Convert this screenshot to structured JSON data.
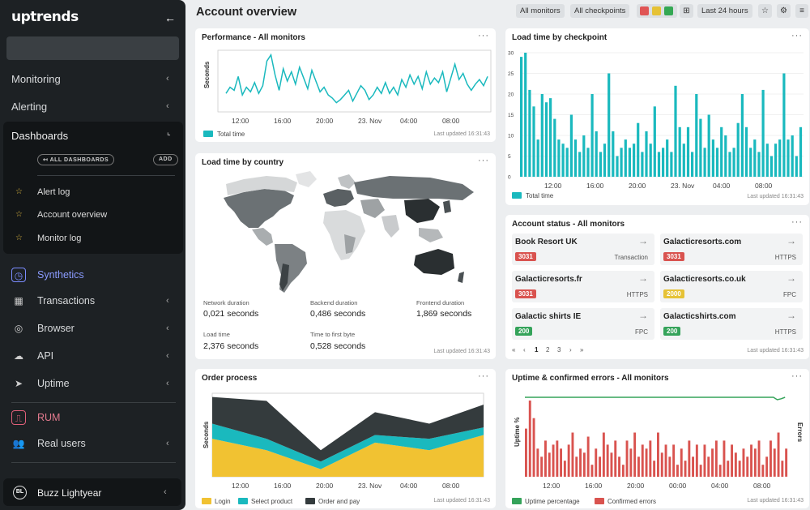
{
  "sidebar": {
    "logo": "uptrends",
    "nav": [
      {
        "label": "Monitoring"
      },
      {
        "label": "Alerting"
      }
    ],
    "dashboards": {
      "title": "Dashboards",
      "all_label": "ALL DASHBOARDS",
      "add_label": "ADD",
      "items": [
        {
          "label": "Alert log"
        },
        {
          "label": "Account overview"
        },
        {
          "label": "Monitor log"
        }
      ]
    },
    "sections": [
      {
        "label": "Synthetics",
        "icon": "synthetics-icon"
      },
      {
        "label": "Transactions",
        "icon": "transactions-icon"
      },
      {
        "label": "Browser",
        "icon": "browser-icon"
      },
      {
        "label": "API",
        "icon": "api-icon"
      },
      {
        "label": "Uptime",
        "icon": "uptime-icon"
      },
      {
        "label": "RUM",
        "icon": "rum-icon"
      },
      {
        "label": "Real users",
        "icon": "real-users-icon"
      }
    ],
    "user": {
      "initials": "BL",
      "name": "Buzz Lightyear"
    }
  },
  "header": {
    "title": "Account overview",
    "filters": {
      "monitors": "All monitors",
      "checkpoints": "All checkpoints",
      "range": "Last 24 hours"
    },
    "status_colors": [
      "#e05555",
      "#e6c235",
      "#34a853"
    ]
  },
  "colors": {
    "teal": "#1ab9be",
    "yellow": "#f1c232",
    "dark": "#343b3d",
    "red": "#d9534f",
    "green": "#35a35a"
  },
  "performance": {
    "title": "Performance - All monitors",
    "ylabel": "Seconds",
    "legend": "Total time",
    "updated": "Last updated 16:31:43"
  },
  "checkpoint": {
    "title": "Load time by checkpoint",
    "legend": "Total time",
    "updated": "Last updated 16:31:43"
  },
  "country": {
    "title": "Load time by country",
    "stats": [
      {
        "label": "Network duration",
        "value": "0,021 seconds"
      },
      {
        "label": "Backend duration",
        "value": "0,486 seconds"
      },
      {
        "label": "Frontend duration",
        "value": "1,869 seconds"
      },
      {
        "label": "Load time",
        "value": "2,376 seconds"
      },
      {
        "label": "Time to first byte",
        "value": "0,528 seconds"
      }
    ],
    "updated": "Last updated 16:31:43"
  },
  "account_status": {
    "title": "Account status - All monitors",
    "items": [
      {
        "name": "Book Resort UK",
        "code": "3031",
        "type": "Transaction",
        "status": "red"
      },
      {
        "name": "Galacticresorts.com",
        "code": "3031",
        "type": "HTTPS",
        "status": "red"
      },
      {
        "name": "Galacticresorts.fr",
        "code": "3031",
        "type": "HTTPS",
        "status": "red"
      },
      {
        "name": "Galacticresorts.co.uk",
        "code": "2000",
        "type": "FPC",
        "status": "yellow"
      },
      {
        "name": "Galactic shirts IE",
        "code": "200",
        "type": "FPC",
        "status": "green"
      },
      {
        "name": "Galacticshirts.com",
        "code": "200",
        "type": "HTTPS",
        "status": "green"
      }
    ],
    "pagination": {
      "first": "«",
      "prev": "‹",
      "pages": [
        "1",
        "2",
        "3"
      ],
      "current": "1",
      "next": "›",
      "last": "»"
    },
    "updated": "Last updated 16:31:43"
  },
  "order": {
    "title": "Order process",
    "ylabel": "Seconds",
    "legend": [
      "Login",
      "Select product",
      "Order and pay"
    ],
    "updated": "Last updated 16:31:43"
  },
  "uptime": {
    "title": "Uptime & confirmed errors - All monitors",
    "ylabel_left": "Uptime %",
    "ylabel_right": "Errors",
    "legend": [
      "Uptime percentage",
      "Confirmed errors"
    ],
    "updated": "Last updated 16:31:43"
  },
  "chart_data": [
    {
      "type": "line",
      "title": "Performance - All monitors",
      "ylabel": "Seconds",
      "x_ticks": [
        "12:00",
        "16:00",
        "20:00",
        "23. Nov",
        "04:00",
        "08:00"
      ],
      "series": [
        {
          "name": "Total time",
          "values": [
            4.2,
            4.6,
            4.4,
            5.3,
            4.1,
            4.6,
            4.3,
            4.9,
            4.2,
            4.7,
            6.3,
            6.7,
            5.4,
            4.4,
            5.8,
            5.0,
            5.6,
            4.8,
            5.9,
            5.2,
            4.5,
            5.7,
            5.0,
            4.3,
            4.6,
            4.1,
            3.9,
            3.6,
            3.8,
            4.1,
            4.4,
            3.7,
            4.2,
            4.7,
            4.4,
            3.8,
            4.1,
            4.6,
            4.2,
            4.9,
            4.2,
            4.6,
            4.1,
            5.1,
            4.6,
            5.4,
            4.8,
            5.3,
            4.5,
            5.6,
            4.8,
            5.2,
            4.9,
            5.6,
            4.3,
            5.2,
            6.1,
            5.1,
            5.5,
            4.8,
            4.4,
            4.8,
            5.1,
            4.7,
            5.3
          ]
        }
      ]
    },
    {
      "type": "bar",
      "title": "Load time by checkpoint",
      "x_ticks": [
        "12:00",
        "16:00",
        "20:00",
        "23. Nov",
        "04:00",
        "08:00"
      ],
      "ylim": [
        0,
        30
      ],
      "y_ticks": [
        0,
        5,
        10,
        15,
        20,
        25,
        30
      ],
      "series": [
        {
          "name": "Total time",
          "values": [
            29,
            30,
            21,
            17,
            9,
            20,
            18,
            19,
            14,
            9,
            8,
            7,
            15,
            9,
            6,
            10,
            7,
            20,
            11,
            6,
            8,
            25,
            11,
            5,
            7,
            9,
            7,
            8,
            13,
            6,
            11,
            8,
            17,
            6,
            7,
            9,
            6,
            22,
            12,
            8,
            12,
            6,
            20,
            14,
            7,
            15,
            9,
            7,
            12,
            10,
            6,
            7,
            13,
            20,
            12,
            7,
            9,
            6,
            21,
            8,
            5,
            8,
            9,
            25,
            9,
            10,
            5,
            12
          ]
        }
      ]
    },
    {
      "type": "area",
      "title": "Order process",
      "ylabel": "Seconds",
      "x_ticks": [
        "12:00",
        "16:00",
        "20:00",
        "23. Nov",
        "04:00",
        "08:00"
      ],
      "series": [
        {
          "name": "Login",
          "values": [
            5.0,
            3.5,
            1.0,
            4.5,
            3.5,
            5.5
          ]
        },
        {
          "name": "Select product",
          "values": [
            2.0,
            1.5,
            1.0,
            1.0,
            1.5,
            1.0
          ]
        },
        {
          "name": "Order and pay",
          "values": [
            3.5,
            5.0,
            1.5,
            3.0,
            2.0,
            3.0
          ]
        }
      ]
    },
    {
      "type": "bar",
      "title": "Uptime & confirmed errors - All monitors",
      "ylabel": "Uptime %",
      "ylabel_right": "Errors",
      "x_ticks": [
        "12:00",
        "16:00",
        "20:00",
        "00:00",
        "04:00",
        "08:00"
      ],
      "series": [
        {
          "name": "Uptime percentage",
          "values": [
            99.9,
            99.9,
            99.9,
            99.9,
            99.9,
            99.9,
            99.9,
            99.9,
            99.9,
            99.9,
            99.9,
            99.9,
            99.9,
            99.9,
            99.9,
            99.9,
            99.9,
            99.9,
            99.9,
            99.9,
            99.9,
            99.9,
            99.9,
            99.9,
            99.9,
            99.9,
            99.9,
            99.9,
            99.9,
            99.9,
            99.9,
            99.9,
            99.9,
            99.9,
            99.9,
            99.9,
            99.9,
            99.9,
            99.9,
            99.9,
            99.9,
            99.9,
            99.9,
            99.9,
            99.9,
            99.9,
            99.9,
            99.9,
            99.9,
            99.9,
            99.9,
            99.9,
            99.9,
            99.9,
            99.9,
            99.9,
            99.9,
            99.9,
            99.9,
            99.9,
            99.9,
            99.9,
            99.9,
            99.9,
            99.9,
            99.4,
            99.6,
            99.9
          ]
        },
        {
          "name": "Confirmed errors",
          "values": [
            60,
            95,
            73,
            35,
            25,
            45,
            30,
            40,
            45,
            35,
            20,
            40,
            55,
            25,
            35,
            30,
            50,
            15,
            35,
            25,
            55,
            40,
            30,
            45,
            25,
            15,
            45,
            35,
            55,
            25,
            40,
            35,
            45,
            20,
            55,
            30,
            40,
            25,
            40,
            15,
            35,
            20,
            45,
            25,
            40,
            15,
            40,
            25,
            35,
            45,
            15,
            45,
            20,
            40,
            30,
            20,
            35,
            25,
            40,
            35,
            45,
            15,
            25,
            45,
            35,
            55,
            20,
            35
          ]
        }
      ]
    }
  ]
}
